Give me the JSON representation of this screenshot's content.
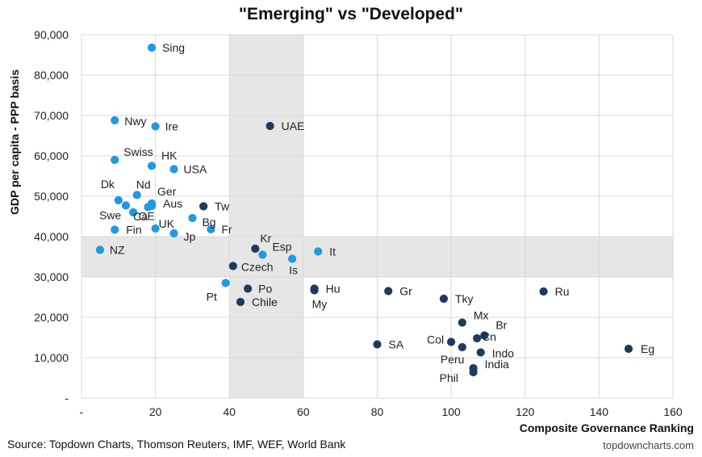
{
  "chart_data": {
    "type": "scatter",
    "title": "\"Emerging\" vs \"Developed\"",
    "xlabel": "Composite Governance Ranking",
    "ylabel": "GDP per capita - PPP basis",
    "xlim": [
      0,
      160
    ],
    "ylim": [
      0,
      90000
    ],
    "x_ticks": [
      "-",
      "20",
      "40",
      "60",
      "80",
      "100",
      "120",
      "140",
      "160"
    ],
    "y_ticks": [
      "-",
      "10,000",
      "20,000",
      "30,000",
      "40,000",
      "50,000",
      "60,000",
      "70,000",
      "80,000",
      "90,000"
    ],
    "grid": "vertical and horizontal gridlines",
    "shaded_bands": [
      {
        "axis": "x",
        "from": 40,
        "to": 60
      },
      {
        "axis": "y",
        "from": 30000,
        "to": 40000
      }
    ],
    "colors": {
      "developed": "#1f9ae0",
      "emerging": "#1f3a5f",
      "band": "#e6e6e6",
      "grid": "#d9d9d9"
    },
    "points": [
      {
        "label": "Sing",
        "x": 19,
        "y": 86800,
        "group": "developed"
      },
      {
        "label": "Nwy",
        "x": 9,
        "y": 68800,
        "group": "developed"
      },
      {
        "label": "Ire",
        "x": 20,
        "y": 67300,
        "group": "developed"
      },
      {
        "label": "UAE",
        "x": 51,
        "y": 67400,
        "group": "emerging"
      },
      {
        "label": "Swiss",
        "x": 9,
        "y": 59000,
        "group": "developed"
      },
      {
        "label": "HK",
        "x": 19,
        "y": 57500,
        "group": "developed"
      },
      {
        "label": "USA",
        "x": 25,
        "y": 56700,
        "group": "developed"
      },
      {
        "label": "Dk",
        "x": 10,
        "y": 49000,
        "group": "developed"
      },
      {
        "label": "Nd",
        "x": 15,
        "y": 50300,
        "group": "developed"
      },
      {
        "label": "Ger",
        "x": 19,
        "y": 48200,
        "group": "developed"
      },
      {
        "label": "Aus",
        "x": 19,
        "y": 47600,
        "group": "developed"
      },
      {
        "label": "Tw",
        "x": 33,
        "y": 47500,
        "group": "emerging"
      },
      {
        "label": "Swe",
        "x": 12,
        "y": 47700,
        "group": "developed"
      },
      {
        "label": "Ca",
        "x": 14,
        "y": 46000,
        "group": "developed"
      },
      {
        "label": "OE",
        "x": 18,
        "y": 47300,
        "group": "developed"
      },
      {
        "label": "Bg",
        "x": 30,
        "y": 44600,
        "group": "developed"
      },
      {
        "label": "Fin",
        "x": 9,
        "y": 41700,
        "group": "developed"
      },
      {
        "label": "UK",
        "x": 20,
        "y": 42000,
        "group": "developed"
      },
      {
        "label": "Jp",
        "x": 25,
        "y": 40800,
        "group": "developed"
      },
      {
        "label": "Fr",
        "x": 35,
        "y": 41800,
        "group": "developed"
      },
      {
        "label": "NZ",
        "x": 5,
        "y": 36700,
        "group": "developed"
      },
      {
        "label": "Kr",
        "x": 47,
        "y": 37000,
        "group": "emerging"
      },
      {
        "label": "Esp",
        "x": 49,
        "y": 35500,
        "group": "developed"
      },
      {
        "label": "It",
        "x": 64,
        "y": 36300,
        "group": "developed"
      },
      {
        "label": "Is",
        "x": 57,
        "y": 34500,
        "group": "developed"
      },
      {
        "label": "Czech",
        "x": 41,
        "y": 32700,
        "group": "emerging"
      },
      {
        "label": "Pt",
        "x": 39,
        "y": 28500,
        "group": "developed"
      },
      {
        "label": "Po",
        "x": 45,
        "y": 27100,
        "group": "emerging"
      },
      {
        "label": "Chile",
        "x": 43,
        "y": 23800,
        "group": "emerging"
      },
      {
        "label": "Hu",
        "x": 63,
        "y": 27100,
        "group": "emerging"
      },
      {
        "label": "My",
        "x": 63,
        "y": 26700,
        "group": "emerging"
      },
      {
        "label": "Gr",
        "x": 83,
        "y": 26500,
        "group": "emerging"
      },
      {
        "label": "Tky",
        "x": 98,
        "y": 24600,
        "group": "emerging"
      },
      {
        "label": "Ru",
        "x": 125,
        "y": 26400,
        "group": "emerging"
      },
      {
        "label": "Mx",
        "x": 103,
        "y": 18700,
        "group": "emerging"
      },
      {
        "label": "Br",
        "x": 109,
        "y": 15500,
        "group": "emerging"
      },
      {
        "label": "Cn",
        "x": 107,
        "y": 14800,
        "group": "emerging"
      },
      {
        "label": "Col",
        "x": 100,
        "y": 13900,
        "group": "emerging"
      },
      {
        "label": "Peru",
        "x": 103,
        "y": 12600,
        "group": "emerging"
      },
      {
        "label": "Indo",
        "x": 108,
        "y": 11300,
        "group": "emerging"
      },
      {
        "label": "SA",
        "x": 80,
        "y": 13300,
        "group": "emerging"
      },
      {
        "label": "Eg",
        "x": 148,
        "y": 12200,
        "group": "emerging"
      },
      {
        "label": "India",
        "x": 106,
        "y": 7400,
        "group": "emerging"
      },
      {
        "label": "Phil",
        "x": 106,
        "y": 6400,
        "group": "emerging"
      }
    ]
  },
  "footer": {
    "source": "Source: Topdown Charts, Thomson Reuters, IMF, WEF, World Bank",
    "brand": "topdowncharts.com"
  }
}
